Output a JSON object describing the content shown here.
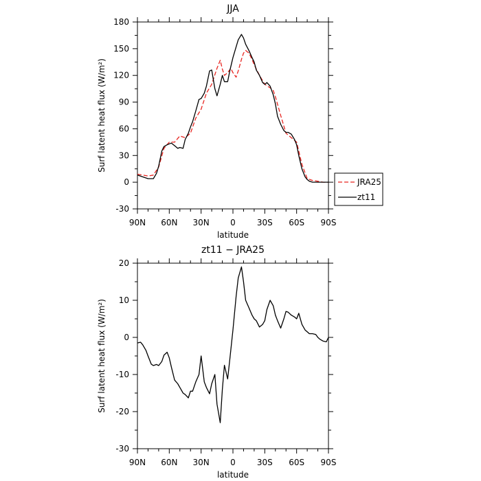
{
  "chart_data": [
    {
      "type": "line",
      "title": "JJA",
      "xlabel": "latitude",
      "ylabel": "Surf latent heat flux (W/m²)",
      "x_ticks": [
        {
          "value": 90,
          "label": "90N"
        },
        {
          "value": 60,
          "label": "60N"
        },
        {
          "value": 30,
          "label": "30N"
        },
        {
          "value": 0,
          "label": "0"
        },
        {
          "value": -30,
          "label": "30S"
        },
        {
          "value": -60,
          "label": "60S"
        },
        {
          "value": -90,
          "label": "90S"
        }
      ],
      "xlim": [
        90,
        -90
      ],
      "ylim": [
        -30,
        180
      ],
      "y_ticks": [
        -30,
        0,
        30,
        60,
        90,
        120,
        150,
        180
      ],
      "legend_position": "right-outside-lower",
      "series": [
        {
          "name": "JRA25",
          "color": "#e8241f",
          "dash": "dashed",
          "x": [
            90,
            85,
            80,
            75,
            70,
            65,
            60,
            55,
            50,
            45,
            40,
            35,
            30,
            25,
            20,
            15,
            12,
            10,
            8,
            5,
            2,
            0,
            -3,
            -5,
            -8,
            -10,
            -12,
            -15,
            -18,
            -20,
            -25,
            -30,
            -35,
            -38,
            -40,
            -45,
            -50,
            -55,
            -60,
            -65,
            -70,
            -75,
            -80,
            -85,
            -90
          ],
          "y": [
            9,
            8,
            7,
            8,
            17,
            38,
            45,
            45,
            52,
            50,
            55,
            72,
            82,
            100,
            110,
            128,
            137,
            127,
            120,
            123,
            128,
            123,
            118,
            125,
            138,
            145,
            148,
            145,
            138,
            132,
            120,
            110,
            106,
            103,
            96,
            75,
            55,
            50,
            45,
            20,
            4,
            2,
            1,
            0,
            0
          ]
        },
        {
          "name": "zt11",
          "color": "#000000",
          "dash": "solid",
          "x": [
            90,
            85,
            80,
            75,
            72,
            70,
            67,
            65,
            62,
            58,
            55,
            52,
            50,
            47,
            45,
            42,
            40,
            38,
            35,
            32,
            30,
            27,
            25,
            22,
            20,
            17,
            15,
            12,
            10,
            8,
            5,
            3,
            0,
            -3,
            -5,
            -8,
            -10,
            -12,
            -15,
            -18,
            -20,
            -22,
            -25,
            -28,
            -30,
            -32,
            -35,
            -38,
            -40,
            -42,
            -45,
            -48,
            -50,
            -52,
            -55,
            -58,
            -60,
            -62,
            -65,
            -68,
            -70,
            -72,
            -75,
            -78,
            -80,
            -85,
            -90
          ],
          "y": [
            8,
            6,
            4,
            4,
            10,
            18,
            35,
            40,
            42,
            44,
            41,
            38,
            39,
            38,
            48,
            55,
            62,
            68,
            80,
            93,
            94,
            100,
            108,
            125,
            126,
            105,
            97,
            110,
            120,
            113,
            113,
            125,
            140,
            152,
            160,
            166,
            162,
            155,
            148,
            140,
            135,
            126,
            120,
            112,
            110,
            112,
            108,
            98,
            88,
            74,
            65,
            58,
            56,
            56,
            54,
            48,
            42,
            30,
            15,
            6,
            3,
            1,
            0,
            0,
            0,
            0,
            0
          ]
        }
      ]
    },
    {
      "type": "line",
      "title": "zt11 − JRA25",
      "xlabel": "latitude",
      "ylabel": "Surf latent heat flux (W/m²)",
      "x_ticks": [
        {
          "value": 90,
          "label": "90N"
        },
        {
          "value": 60,
          "label": "60N"
        },
        {
          "value": 30,
          "label": "30N"
        },
        {
          "value": 0,
          "label": "0"
        },
        {
          "value": -30,
          "label": "30S"
        },
        {
          "value": -60,
          "label": "60S"
        },
        {
          "value": -90,
          "label": "90S"
        }
      ],
      "xlim": [
        90,
        -90
      ],
      "ylim": [
        -30,
        20
      ],
      "y_ticks": [
        -30,
        -20,
        -10,
        0,
        10,
        20
      ],
      "series": [
        {
          "name": "zt11",
          "color": "#000000",
          "dash": "solid",
          "x": [
            90,
            87,
            85,
            82,
            80,
            77,
            75,
            72,
            70,
            67,
            65,
            62,
            60,
            58,
            55,
            52,
            50,
            47,
            45,
            42,
            40,
            38,
            35,
            32,
            30,
            27,
            25,
            22,
            20,
            17,
            15,
            12,
            10,
            8,
            5,
            3,
            0,
            -3,
            -5,
            -8,
            -10,
            -12,
            -15,
            -18,
            -20,
            -22,
            -25,
            -28,
            -30,
            -32,
            -35,
            -38,
            -40,
            -42,
            -45,
            -48,
            -50,
            -52,
            -55,
            -58,
            -60,
            -62,
            -65,
            -68,
            -70,
            -72,
            -75,
            -78,
            -80,
            -82,
            -85,
            -88,
            -90
          ],
          "y": [
            -1.5,
            -1.3,
            -2,
            -3.5,
            -5,
            -7.2,
            -7.6,
            -7.3,
            -7.6,
            -6.5,
            -4.8,
            -4,
            -5.5,
            -8,
            -11.5,
            -12.5,
            -13.5,
            -15,
            -15.4,
            -16.3,
            -14.5,
            -14.5,
            -12,
            -10,
            -5,
            -12,
            -13.5,
            -15.2,
            -12.5,
            -10,
            -18,
            -23,
            -14,
            -7.5,
            -11.2,
            -6,
            2,
            11,
            16,
            19,
            15,
            10,
            8,
            6,
            5,
            4.5,
            2.8,
            3.5,
            4.5,
            7.5,
            10,
            8.5,
            6,
            4.5,
            2.5,
            5,
            7,
            6.8,
            6,
            5.5,
            5,
            6.5,
            3.5,
            2,
            1.5,
            1,
            1,
            0.8,
            0,
            -0.5,
            -1,
            -1.2,
            0
          ]
        }
      ]
    }
  ]
}
